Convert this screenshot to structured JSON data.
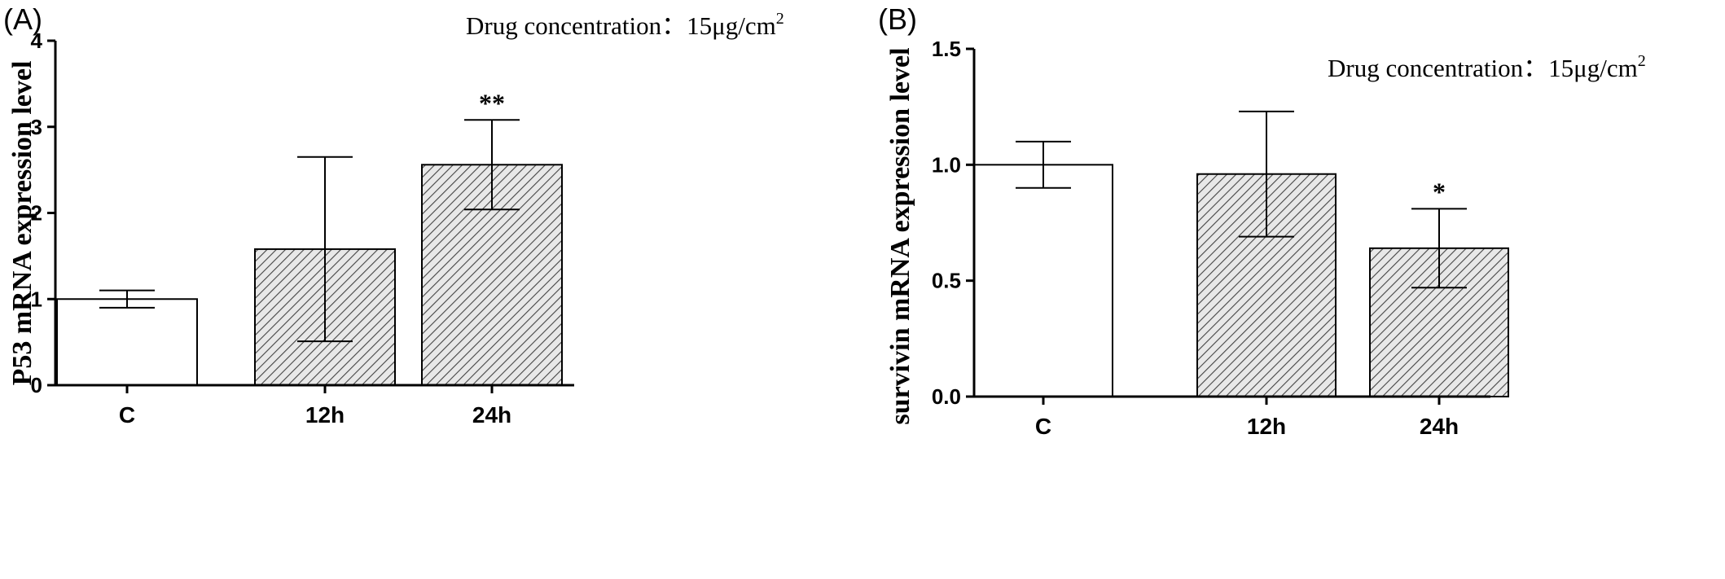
{
  "chart_data": [
    {
      "type": "bar",
      "panel": "(A)",
      "annotation": {
        "prefix": "Drug concentration：15μg/cm",
        "superscript": "2"
      },
      "ylabel": "P53 mRNA expression level",
      "xlabel": "",
      "categories": [
        "C",
        "12h",
        "24h"
      ],
      "values": [
        1.0,
        1.58,
        2.56
      ],
      "errors": [
        0.1,
        1.07,
        0.52
      ],
      "significance": [
        "",
        "",
        "**"
      ],
      "fills": [
        "plain",
        "hatch",
        "hatch"
      ],
      "ylim": [
        0,
        4
      ],
      "yticks": [
        "0",
        "1",
        "2",
        "3",
        "4"
      ],
      "grid": false
    },
    {
      "type": "bar",
      "panel": "(B)",
      "annotation": {
        "prefix": "Drug concentration：15μg/cm",
        "superscript": "2"
      },
      "ylabel": "survivin mRNA expression level",
      "xlabel": "",
      "categories": [
        "C",
        "12h",
        "24h"
      ],
      "values": [
        1.0,
        0.96,
        0.64
      ],
      "errors": [
        0.1,
        0.27,
        0.17
      ],
      "significance": [
        "",
        "",
        "*"
      ],
      "fills": [
        "plain",
        "hatch",
        "hatch"
      ],
      "ylim": [
        0,
        1.5
      ],
      "yticks": [
        "0.0",
        "0.5",
        "1.0",
        "1.5"
      ],
      "grid": false
    }
  ],
  "colors": {
    "axis": "#000000",
    "plain_fill": "#ffffff",
    "hatch_bg": "#e8e8e8",
    "hatch_line": "#444444"
  }
}
